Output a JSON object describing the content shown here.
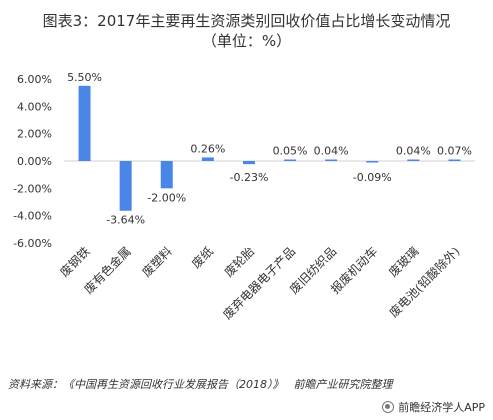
{
  "title_line1": "图表3：2017年主要再生资源类别回收价值占比增长变动情况",
  "title_line2": "（单位：%）",
  "source_prefix": "资料来源：",
  "source_text": "《中国再生资源回收行业发展报告（2018）》",
  "source_org": "前瞻产业研究院整理",
  "brand": "前瞻经济学人APP",
  "colors": {
    "bar": "#4a86e8",
    "axis": "#d0d0d0",
    "text": "#333333"
  },
  "chart_data": {
    "type": "bar",
    "title": "图表3：2017年主要再生资源类别回收价值占比增长变动情况",
    "subtitle": "（单位：%）",
    "categories": [
      "废钢铁",
      "废有色金属",
      "废塑料",
      "废纸",
      "废轮胎",
      "废弃电器电子产品",
      "废旧纺织品",
      "报废机动车",
      "废玻璃",
      "废电池(铅酸除外)"
    ],
    "values": [
      5.5,
      -3.64,
      -2.0,
      0.26,
      -0.23,
      0.05,
      0.04,
      -0.09,
      0.04,
      0.07
    ],
    "value_labels": [
      "5.50%",
      "-3.64%",
      "-2.00%",
      "0.26%",
      "-0.23%",
      "0.05%",
      "0.04%",
      "-0.09%",
      "0.04%",
      "0.07%"
    ],
    "y_ticks": [
      6,
      4,
      2,
      0,
      -2,
      -4,
      -6
    ],
    "y_tick_labels": [
      "6.00%",
      "4.00%",
      "2.00%",
      "0.00%",
      "-2.00%",
      "-4.00%",
      "-6.00%"
    ],
    "ylim": [
      -6,
      6
    ],
    "grid": false,
    "legend": "none"
  }
}
